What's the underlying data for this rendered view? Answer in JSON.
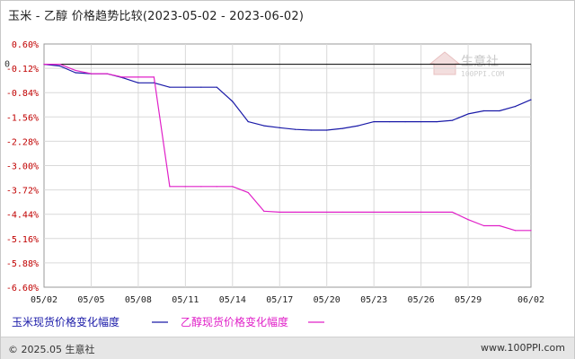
{
  "header": {
    "title": "玉米 - 乙醇 价格趋势比较(2023-05-02 - 2023-06-02)"
  },
  "watermark": {
    "name": "生意社",
    "url": "100PPI.COM"
  },
  "footer": {
    "copyright": "© 2025.05 生意社",
    "source": "www.100PPI.com"
  },
  "colors": {
    "corn": "#1a1aa8",
    "ethanol": "#e020c8",
    "axis_text": "#c00000",
    "zero_line": "#000000",
    "grid": "#d9d9d9"
  },
  "chart_data": {
    "type": "line",
    "title": "玉米 - 乙醇 价格趋势比较(2023-05-02 - 2023-06-02)",
    "zero_label": "0",
    "x_ticks": [
      "05/02",
      "05/05",
      "05/08",
      "05/11",
      "05/14",
      "05/17",
      "05/20",
      "05/23",
      "05/26",
      "05/29",
      "06/02"
    ],
    "x": [
      "05/02",
      "05/03",
      "05/04",
      "05/05",
      "05/06",
      "05/07",
      "05/08",
      "05/09",
      "05/10",
      "05/11",
      "05/12",
      "05/13",
      "05/14",
      "05/15",
      "05/16",
      "05/17",
      "05/18",
      "05/19",
      "05/20",
      "05/21",
      "05/22",
      "05/23",
      "05/24",
      "05/25",
      "05/26",
      "05/27",
      "05/28",
      "05/29",
      "05/30",
      "05/31",
      "06/01",
      "06/02"
    ],
    "y_ticks": [
      "0.60%",
      "-0.12%",
      "-0.84%",
      "-1.56%",
      "-2.28%",
      "-3.00%",
      "-3.72%",
      "-4.44%",
      "-5.16%",
      "-5.88%",
      "-6.60%"
    ],
    "ylim": [
      -6.6,
      0.6
    ],
    "grid": true,
    "legend_position": "bottom",
    "series": [
      {
        "name": "玉米现货价格变化幅度",
        "values": [
          0,
          -0.05,
          -0.25,
          -0.28,
          -0.28,
          -0.4,
          -0.55,
          -0.55,
          -0.68,
          -0.68,
          -0.68,
          -0.68,
          -1.1,
          -1.7,
          -1.82,
          -1.88,
          -1.93,
          -1.95,
          -1.95,
          -1.9,
          -1.82,
          -1.7,
          -1.7,
          -1.7,
          -1.7,
          -1.7,
          -1.66,
          -1.47,
          -1.38,
          -1.38,
          -1.25,
          -1.05
        ]
      },
      {
        "name": "乙醇现货价格变化幅度",
        "values": [
          0,
          0,
          -0.18,
          -0.28,
          -0.28,
          -0.38,
          -0.38,
          -0.38,
          -3.62,
          -3.62,
          -3.62,
          -3.62,
          -3.62,
          -3.8,
          -4.35,
          -4.38,
          -4.38,
          -4.38,
          -4.38,
          -4.38,
          -4.38,
          -4.38,
          -4.38,
          -4.38,
          -4.38,
          -4.38,
          -4.38,
          -4.6,
          -4.78,
          -4.78,
          -4.92,
          -4.92
        ]
      }
    ]
  }
}
